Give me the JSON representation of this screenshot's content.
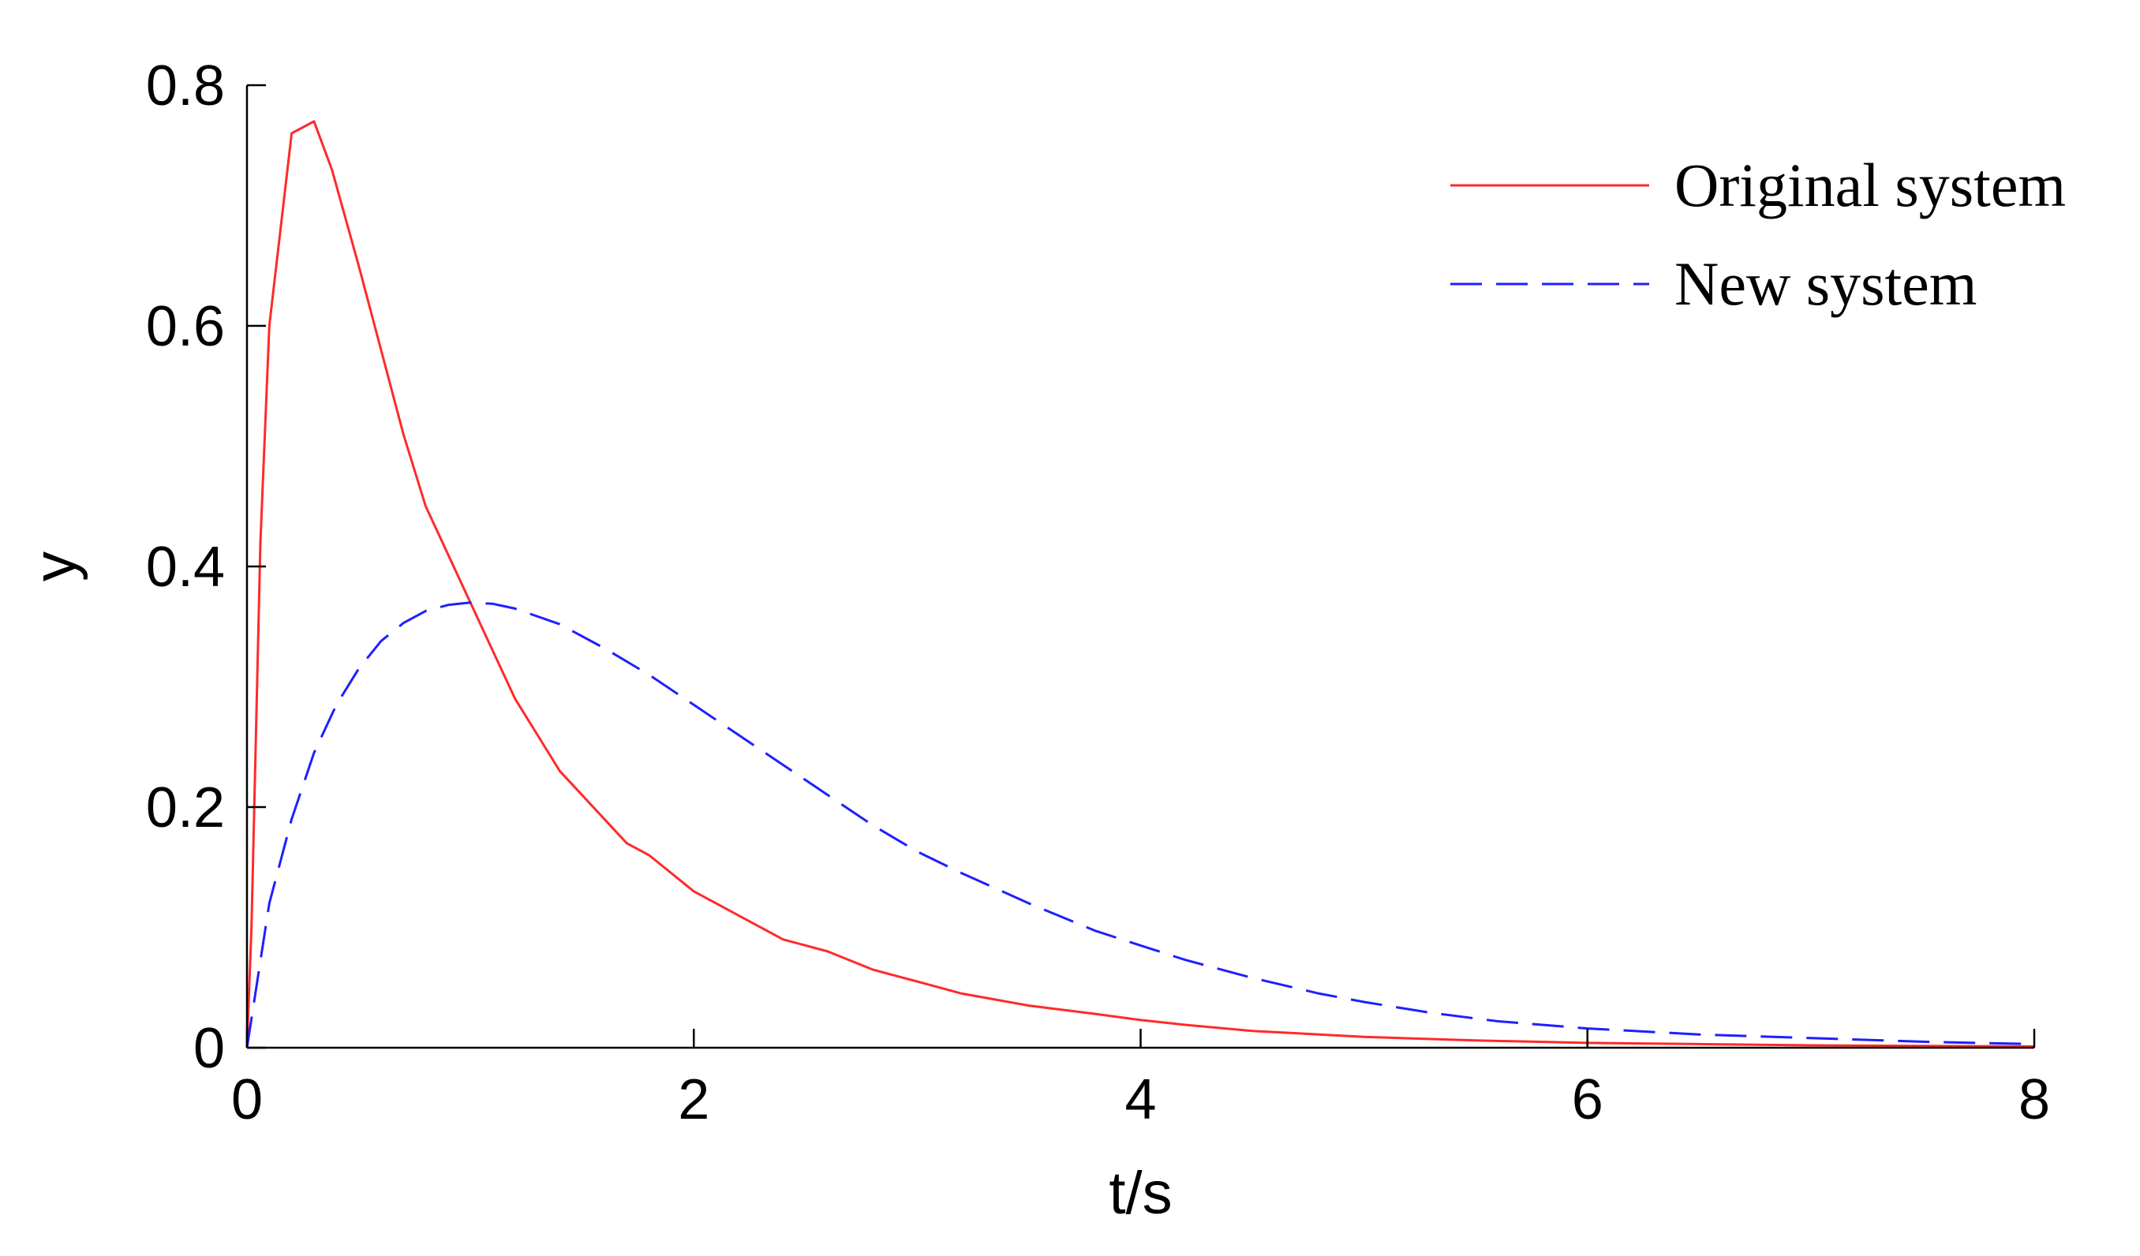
{
  "chart_data": {
    "type": "line",
    "xlabel": "t/s",
    "ylabel": "y",
    "xlim": [
      0,
      8
    ],
    "ylim": [
      0,
      0.8
    ],
    "xticks": [
      0,
      2,
      4,
      6,
      8
    ],
    "yticks": [
      0,
      0.2,
      0.4,
      0.6,
      0.8
    ],
    "xtick_labels": [
      "0",
      "2",
      "4",
      "6",
      "8"
    ],
    "ytick_labels": [
      "0",
      "0.2",
      "0.4",
      "0.6",
      "0.8"
    ],
    "grid": false,
    "legend_position": "top-right",
    "series": [
      {
        "name": "Original system",
        "color": "#ff2a2a",
        "line_style": "solid",
        "x": [
          0,
          0.02,
          0.06,
          0.1,
          0.2,
          0.3,
          0.38,
          0.5,
          0.6,
          0.7,
          0.8,
          0.9,
          1.0,
          1.1,
          1.2,
          1.3,
          1.4,
          1.5,
          1.6,
          1.7,
          1.8,
          2.0,
          2.2,
          2.4,
          2.6,
          2.8,
          3.0,
          3.2,
          3.5,
          3.8,
          4.0,
          4.2,
          4.5,
          4.8,
          5.0,
          5.5,
          6.0,
          6.5,
          7.0,
          7.5,
          8.0
        ],
        "y": [
          0,
          0.1,
          0.42,
          0.6,
          0.76,
          0.77,
          0.73,
          0.65,
          0.58,
          0.51,
          0.45,
          0.41,
          0.37,
          0.33,
          0.29,
          0.26,
          0.23,
          0.21,
          0.19,
          0.17,
          0.16,
          0.13,
          0.11,
          0.09,
          0.08,
          0.065,
          0.055,
          0.045,
          0.035,
          0.028,
          0.023,
          0.019,
          0.014,
          0.011,
          0.009,
          0.006,
          0.004,
          0.003,
          0.002,
          0.0015,
          0.001
        ]
      },
      {
        "name": "New system",
        "color": "#1f1fff",
        "line_style": "dashed",
        "x": [
          0,
          0.1,
          0.2,
          0.3,
          0.4,
          0.5,
          0.6,
          0.7,
          0.8,
          0.9,
          1.0,
          1.1,
          1.2,
          1.4,
          1.6,
          1.8,
          2.0,
          2.2,
          2.4,
          2.6,
          2.8,
          3.0,
          3.2,
          3.5,
          3.8,
          4.0,
          4.2,
          4.5,
          4.8,
          5.0,
          5.3,
          5.6,
          6.0,
          6.5,
          7.0,
          7.5,
          8.0
        ],
        "y": [
          0,
          0.12,
          0.19,
          0.245,
          0.285,
          0.315,
          0.338,
          0.353,
          0.363,
          0.368,
          0.37,
          0.369,
          0.365,
          0.352,
          0.332,
          0.31,
          0.285,
          0.26,
          0.235,
          0.21,
          0.185,
          0.163,
          0.145,
          0.12,
          0.097,
          0.085,
          0.073,
          0.058,
          0.045,
          0.038,
          0.029,
          0.022,
          0.016,
          0.011,
          0.008,
          0.005,
          0.003
        ]
      }
    ]
  }
}
